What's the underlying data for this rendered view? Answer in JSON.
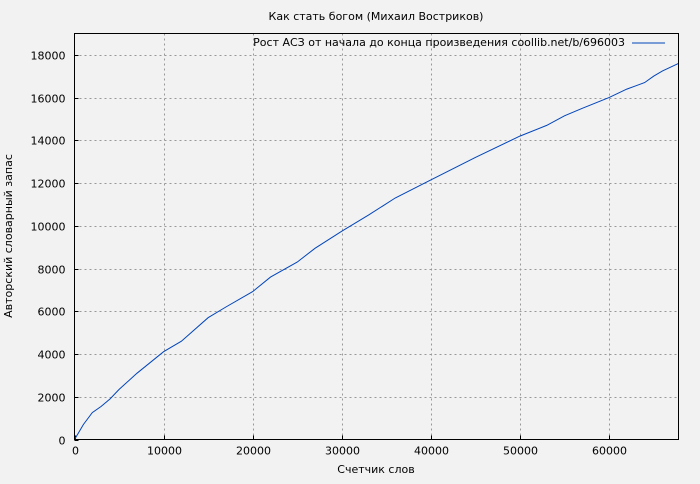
{
  "chart_data": {
    "type": "line",
    "title": "Как стать богом (Михаил Востриков)",
    "xlabel": "Счетчик слов",
    "ylabel": "Авторский словарный запас",
    "xlim": [
      0,
      67800
    ],
    "ylim": [
      0,
      19000
    ],
    "xticks": [
      0,
      10000,
      20000,
      30000,
      40000,
      50000,
      60000
    ],
    "yticks": [
      0,
      2000,
      4000,
      6000,
      8000,
      10000,
      12000,
      14000,
      16000,
      18000
    ],
    "grid": true,
    "legend_position": "top-right",
    "series": [
      {
        "name": "Рост АСЗ от начала до конца произведения coollib.net/b/696003",
        "color": "#0044bb",
        "x": [
          0,
          500,
          1000,
          2000,
          3000,
          4000,
          5000,
          7000,
          10000,
          12000,
          15000,
          17000,
          20000,
          22000,
          25000,
          27000,
          30000,
          33000,
          36000,
          40000,
          45000,
          50000,
          53000,
          55000,
          57000,
          60000,
          62000,
          64000,
          65000,
          66000,
          67800
        ],
        "y": [
          0,
          350,
          700,
          1260,
          1550,
          1900,
          2340,
          3100,
          4110,
          4600,
          5700,
          6200,
          6920,
          7600,
          8300,
          8950,
          9750,
          10500,
          11300,
          12150,
          13200,
          14200,
          14700,
          15150,
          15500,
          16000,
          16400,
          16700,
          17000,
          17250,
          17600
        ]
      }
    ]
  }
}
